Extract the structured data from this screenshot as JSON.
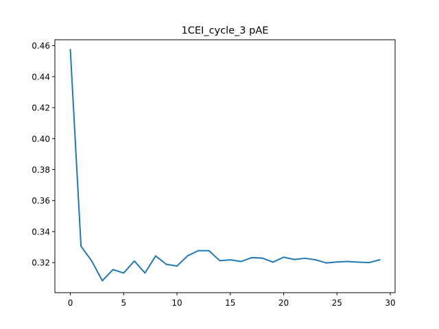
{
  "chart_data": {
    "type": "line",
    "title": "1CEI_cycle_3 pAE",
    "xlabel": "",
    "ylabel": "",
    "xlim": [
      -1.45,
      30.45
    ],
    "ylim": [
      0.3006,
      0.4638
    ],
    "xticks": [
      0,
      5,
      10,
      15,
      20,
      25,
      30
    ],
    "yticks": [
      0.32,
      0.34,
      0.36,
      0.38,
      0.4,
      0.42,
      0.44,
      0.46
    ],
    "ytick_labels": [
      "0.32",
      "0.34",
      "0.36",
      "0.38",
      "0.40",
      "0.42",
      "0.44",
      "0.46"
    ],
    "grid": false,
    "series": [
      {
        "color": "#1f77b4",
        "x": [
          0,
          1,
          2,
          3,
          4,
          5,
          6,
          7,
          8,
          9,
          10,
          11,
          12,
          13,
          14,
          15,
          16,
          17,
          18,
          19,
          20,
          21,
          22,
          23,
          24,
          25,
          26,
          27,
          28,
          29
        ],
        "values": [
          0.4574,
          0.3306,
          0.3211,
          0.3083,
          0.3155,
          0.3133,
          0.321,
          0.3133,
          0.3243,
          0.3189,
          0.3178,
          0.3244,
          0.3277,
          0.3277,
          0.3213,
          0.3218,
          0.3207,
          0.3232,
          0.3229,
          0.3203,
          0.3235,
          0.322,
          0.3228,
          0.3218,
          0.3198,
          0.3204,
          0.3207,
          0.3203,
          0.32,
          0.3218
        ]
      }
    ]
  }
}
